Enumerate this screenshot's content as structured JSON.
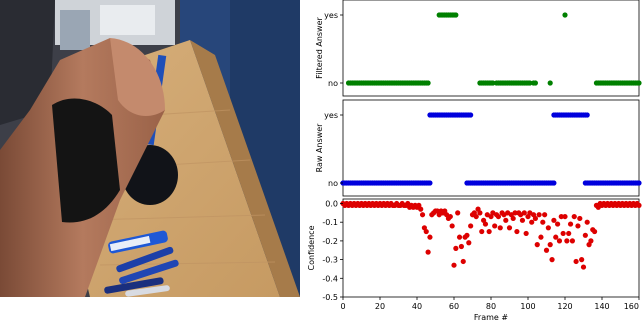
{
  "photo": {
    "content": "first-person view of a hand wearing a black wristband reaching for blue pens on a wooden desk"
  },
  "chart_data": [
    {
      "type": "scatter",
      "ylabel": "Filtered Answer",
      "xlim": [
        0,
        160
      ],
      "y_categories": [
        "no",
        "yes"
      ],
      "color": "#008000",
      "segments": [
        {
          "x_start": 3,
          "x_end": 46,
          "y": "no"
        },
        {
          "x_start": 52,
          "x_end": 61,
          "y": "yes"
        },
        {
          "x_start": 74,
          "x_end": 81,
          "y": "no"
        },
        {
          "x_start": 83,
          "x_end": 101,
          "y": "no"
        },
        {
          "x_start": 103,
          "x_end": 104,
          "y": "no"
        },
        {
          "x_start": 112,
          "x_end": 112,
          "y": "no"
        },
        {
          "x_start": 120,
          "x_end": 120,
          "y": "yes"
        },
        {
          "x_start": 137,
          "x_end": 160,
          "y": "no"
        }
      ]
    },
    {
      "type": "scatter",
      "ylabel": "Raw Answer",
      "xlim": [
        0,
        160
      ],
      "y_categories": [
        "no",
        "yes"
      ],
      "color": "#0000dd",
      "segments": [
        {
          "x_start": 0,
          "x_end": 47,
          "y": "no"
        },
        {
          "x_start": 47,
          "x_end": 69,
          "y": "yes"
        },
        {
          "x_start": 67,
          "x_end": 114,
          "y": "no"
        },
        {
          "x_start": 114,
          "x_end": 132,
          "y": "yes"
        },
        {
          "x_start": 131,
          "x_end": 160,
          "y": "no"
        }
      ]
    },
    {
      "type": "scatter",
      "xlabel": "Frame #",
      "ylabel": "Confidence",
      "xlim": [
        0,
        160
      ],
      "ylim": [
        -0.5,
        0.0
      ],
      "color": "#dd0000",
      "x_ticks": [
        "0",
        "20",
        "40",
        "60",
        "80",
        "100",
        "120",
        "140",
        "160"
      ],
      "y_ticks": [
        "0.0",
        "-0.1",
        "-0.2",
        "-0.3",
        "-0.4",
        "-0.5"
      ],
      "points": [
        [
          0,
          0
        ],
        [
          1,
          -0.01
        ],
        [
          2,
          0
        ],
        [
          3,
          -0.01
        ],
        [
          4,
          0
        ],
        [
          5,
          -0.01
        ],
        [
          6,
          0
        ],
        [
          7,
          -0.01
        ],
        [
          8,
          0
        ],
        [
          9,
          -0.01
        ],
        [
          10,
          0
        ],
        [
          11,
          -0.01
        ],
        [
          12,
          0
        ],
        [
          13,
          -0.01
        ],
        [
          14,
          0
        ],
        [
          15,
          -0.01
        ],
        [
          16,
          0
        ],
        [
          17,
          -0.01
        ],
        [
          18,
          0
        ],
        [
          19,
          -0.01
        ],
        [
          20,
          0
        ],
        [
          21,
          -0.01
        ],
        [
          22,
          0
        ],
        [
          23,
          -0.01
        ],
        [
          24,
          0
        ],
        [
          25,
          -0.01
        ],
        [
          26,
          0
        ],
        [
          27,
          -0.01
        ],
        [
          28,
          -0.01
        ],
        [
          29,
          0
        ],
        [
          30,
          -0.01
        ],
        [
          31,
          -0.01
        ],
        [
          32,
          0
        ],
        [
          33,
          -0.01
        ],
        [
          34,
          -0.01
        ],
        [
          35,
          0
        ],
        [
          36,
          -0.02
        ],
        [
          37,
          -0.01
        ],
        [
          38,
          -0.02
        ],
        [
          39,
          -0.01
        ],
        [
          40,
          -0.02
        ],
        [
          41,
          -0.01
        ],
        [
          42,
          -0.03
        ],
        [
          43,
          -0.06
        ],
        [
          44,
          -0.13
        ],
        [
          45,
          -0.15
        ],
        [
          46,
          -0.26
        ],
        [
          47,
          -0.18
        ],
        [
          48,
          -0.06
        ],
        [
          49,
          -0.05
        ],
        [
          50,
          -0.04
        ],
        [
          51,
          -0.04
        ],
        [
          52,
          -0.06
        ],
        [
          53,
          -0.04
        ],
        [
          54,
          -0.05
        ],
        [
          55,
          -0.04
        ],
        [
          56,
          -0.06
        ],
        [
          57,
          -0.08
        ],
        [
          58,
          -0.07
        ],
        [
          59,
          -0.12
        ],
        [
          60,
          -0.33
        ],
        [
          61,
          -0.24
        ],
        [
          62,
          -0.05
        ],
        [
          63,
          -0.18
        ],
        [
          64,
          -0.23
        ],
        [
          65,
          -0.31
        ],
        [
          66,
          -0.18
        ],
        [
          67,
          -0.17
        ],
        [
          68,
          -0.21
        ],
        [
          69,
          -0.12
        ],
        [
          70,
          -0.06
        ],
        [
          71,
          -0.05
        ],
        [
          72,
          -0.07
        ],
        [
          73,
          -0.03
        ],
        [
          74,
          -0.05
        ],
        [
          75,
          -0.15
        ],
        [
          76,
          -0.09
        ],
        [
          77,
          -0.11
        ],
        [
          78,
          -0.06
        ],
        [
          79,
          -0.15
        ],
        [
          80,
          -0.07
        ],
        [
          81,
          -0.05
        ],
        [
          82,
          -0.12
        ],
        [
          83,
          -0.06
        ],
        [
          84,
          -0.07
        ],
        [
          85,
          -0.13
        ],
        [
          86,
          -0.05
        ],
        [
          87,
          -0.06
        ],
        [
          88,
          -0.09
        ],
        [
          89,
          -0.05
        ],
        [
          90,
          -0.13
        ],
        [
          91,
          -0.06
        ],
        [
          92,
          -0.08
        ],
        [
          93,
          -0.05
        ],
        [
          94,
          -0.15
        ],
        [
          95,
          -0.05
        ],
        [
          96,
          -0.06
        ],
        [
          97,
          -0.09
        ],
        [
          98,
          -0.05
        ],
        [
          99,
          -0.16
        ],
        [
          100,
          -0.07
        ],
        [
          101,
          -0.05
        ],
        [
          102,
          -0.1
        ],
        [
          103,
          -0.06
        ],
        [
          104,
          -0.08
        ],
        [
          105,
          -0.22
        ],
        [
          106,
          -0.06
        ],
        [
          107,
          -0.18
        ],
        [
          108,
          -0.1
        ],
        [
          109,
          -0.06
        ],
        [
          110,
          -0.25
        ],
        [
          111,
          -0.13
        ],
        [
          112,
          -0.22
        ],
        [
          113,
          -0.3
        ],
        [
          114,
          -0.09
        ],
        [
          115,
          -0.18
        ],
        [
          116,
          -0.11
        ],
        [
          117,
          -0.2
        ],
        [
          118,
          -0.07
        ],
        [
          119,
          -0.16
        ],
        [
          120,
          -0.07
        ],
        [
          121,
          -0.2
        ],
        [
          122,
          -0.16
        ],
        [
          123,
          -0.11
        ],
        [
          124,
          -0.2
        ],
        [
          125,
          -0.07
        ],
        [
          126,
          -0.31
        ],
        [
          127,
          -0.12
        ],
        [
          128,
          -0.08
        ],
        [
          129,
          -0.3
        ],
        [
          130,
          -0.34
        ],
        [
          131,
          -0.17
        ],
        [
          132,
          -0.1
        ],
        [
          133,
          -0.22
        ],
        [
          134,
          -0.2
        ],
        [
          135,
          -0.14
        ],
        [
          136,
          -0.15
        ],
        [
          137,
          -0.01
        ],
        [
          138,
          -0.02
        ],
        [
          139,
          0
        ],
        [
          140,
          -0.01
        ],
        [
          141,
          0
        ],
        [
          142,
          -0.01
        ],
        [
          143,
          0
        ],
        [
          144,
          -0.01
        ],
        [
          145,
          0
        ],
        [
          146,
          -0.01
        ],
        [
          147,
          0
        ],
        [
          148,
          -0.01
        ],
        [
          149,
          0
        ],
        [
          150,
          -0.01
        ],
        [
          151,
          0
        ],
        [
          152,
          -0.01
        ],
        [
          153,
          0
        ],
        [
          154,
          -0.01
        ],
        [
          155,
          0
        ],
        [
          156,
          -0.01
        ],
        [
          157,
          0
        ],
        [
          158,
          -0.01
        ],
        [
          159,
          0
        ],
        [
          160,
          -0.01
        ]
      ]
    }
  ]
}
